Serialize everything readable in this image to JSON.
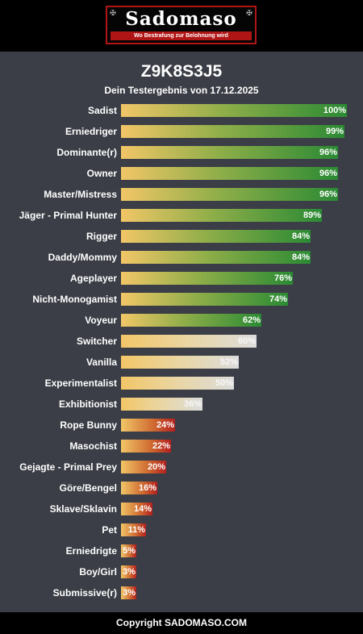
{
  "header": {
    "logo_text": "Sadomaso",
    "logo_tagline": "Wo Bestrafung zur Belohnung wird",
    "ornament_left": "✠",
    "ornament_right": "✠",
    "colors": {
      "header_bg": "#000000",
      "logo_border": "#b01515",
      "page_bg": "#3b3e46"
    }
  },
  "main": {
    "title": "Z9K8S3J5",
    "subtitle": "Dein Testergebnis von 17.12.2025"
  },
  "chart_data": {
    "type": "bar",
    "orientation": "horizontal",
    "categories": [
      "Sadist",
      "Erniedriger",
      "Dominante(r)",
      "Owner",
      "Master/Mistress",
      "Jäger - Primal Hunter",
      "Rigger",
      "Daddy/Mommy",
      "Ageplayer",
      "Nicht-Monogamist",
      "Voyeur",
      "Switcher",
      "Vanilla",
      "Experimentalist",
      "Exhibitionist",
      "Rope Bunny",
      "Masochist",
      "Gejagte - Primal Prey",
      "Göre/Bengel",
      "Sklave/Sklavin",
      "Pet",
      "Erniedrigte",
      "Boy/Girl",
      "Submissive(r)"
    ],
    "values": [
      100,
      99,
      96,
      96,
      96,
      89,
      84,
      84,
      76,
      74,
      62,
      60,
      52,
      50,
      36,
      24,
      22,
      20,
      16,
      14,
      11,
      5,
      3,
      3
    ],
    "labels": [
      "100%",
      "99%",
      "96%",
      "96%",
      "96%",
      "89%",
      "84%",
      "84%",
      "76%",
      "74%",
      "62%",
      "60%",
      "52%",
      "50%",
      "36%",
      "24%",
      "22%",
      "20%",
      "16%",
      "14%",
      "11%",
      "5%",
      "3%",
      "3%"
    ],
    "xlim": [
      0,
      100
    ],
    "colors": {
      "high": "#2b8a34",
      "mid": "#dcdcdc",
      "low": "#b3201e",
      "start": "#f2c667"
    }
  },
  "footer": {
    "text": "Copyright SADOMASO.COM"
  }
}
